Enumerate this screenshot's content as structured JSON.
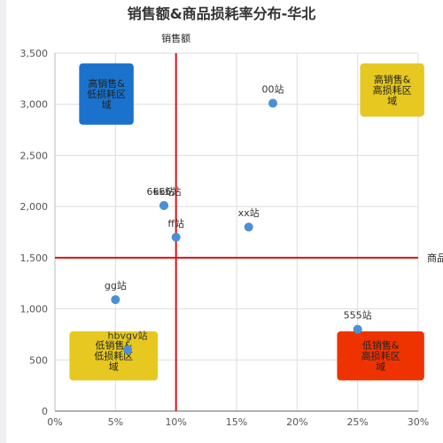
{
  "chart_data": {
    "type": "scatter",
    "title": "销售额&商品损耗率分布-华北",
    "xlabel": "商品损耗率",
    "ylabel": "销售额",
    "xlim": [
      0,
      0.3
    ],
    "ylim": [
      0,
      3500
    ],
    "x_ticks": [
      "0%",
      "5%",
      "10%",
      "15%",
      "20%",
      "25%",
      "30%"
    ],
    "y_ticks": [
      "0",
      "500",
      "1,000",
      "1,500",
      "2,000",
      "2,500",
      "3,000",
      "3,500"
    ],
    "x_tick_values": [
      0,
      0.05,
      0.1,
      0.15,
      0.2,
      0.25,
      0.3
    ],
    "y_tick_values": [
      0,
      500,
      1000,
      1500,
      2000,
      2500,
      3000,
      3500
    ],
    "threshold_x": 0.1,
    "threshold_y": 1500,
    "grid": true,
    "point_color": "#4a8fd8",
    "line_color": "#dd1111",
    "points": [
      {
        "label": "00站",
        "x": 0.18,
        "y": 3010
      },
      {
        "label": "kk站",
        "x": 0.09,
        "y": 2010
      },
      {
        "label": "6666站",
        "x": 0.09,
        "y": 2010
      },
      {
        "label": "ff站",
        "x": 0.1,
        "y": 1700
      },
      {
        "label": "xx站",
        "x": 0.16,
        "y": 1800
      },
      {
        "label": "gg站",
        "x": 0.05,
        "y": 1090
      },
      {
        "label": "hbvgv站",
        "x": 0.06,
        "y": 600
      },
      {
        "label": "555站",
        "x": 0.25,
        "y": 800
      }
    ],
    "quadrants": [
      {
        "lines": [
          "高销售&",
          "低损耗区",
          "域"
        ],
        "color": "#1a72cc",
        "text_color": "#222222",
        "x0": 0.02,
        "x1": 0.065,
        "y0": 2800,
        "y1": 3400
      },
      {
        "lines": [
          "高销售&",
          "高损耗区",
          "域"
        ],
        "color": "#e6c820",
        "text_color": "#222222",
        "x0": 0.252,
        "x1": 0.305,
        "y0": 2880,
        "y1": 3400
      },
      {
        "lines": [
          "低销售&",
          "低损耗区",
          "域"
        ],
        "color": "#e6c820",
        "text_color": "#222222",
        "x0": 0.012,
        "x1": 0.085,
        "y0": 300,
        "y1": 780
      },
      {
        "lines": [
          "低销售&",
          "高损耗区",
          "域"
        ],
        "color": "#ee3300",
        "text_color": "#222222",
        "x0": 0.233,
        "x1": 0.305,
        "y0": 300,
        "y1": 780
      }
    ]
  }
}
